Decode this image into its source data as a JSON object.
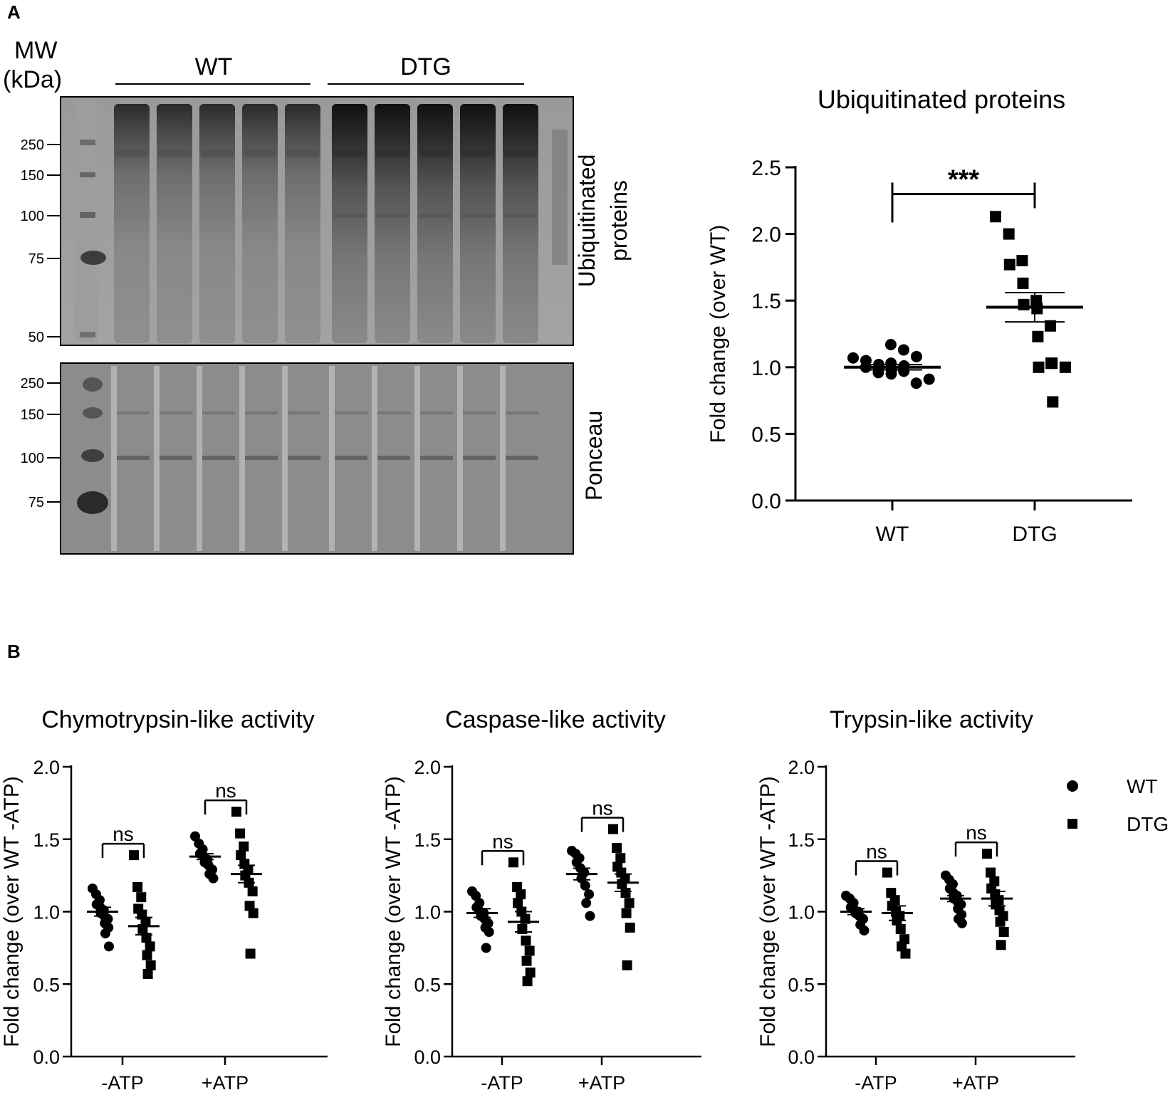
{
  "panel_a": {
    "letter": "A",
    "blot": {
      "mw_header": [
        "MW",
        "(kDa)"
      ],
      "groups": [
        "WT",
        "DTG"
      ],
      "top_blot_label": [
        "Ubiquitinated",
        "proteins"
      ],
      "bottom_blot_label": "Ponceau",
      "top_markers": [
        "250",
        "150",
        "100",
        "75",
        "50"
      ],
      "bottom_markers": [
        "250",
        "150",
        "100",
        "75"
      ]
    }
  },
  "panel_b": {
    "letter": "B",
    "legend": [
      {
        "label": "WT",
        "marker": "circle"
      },
      {
        "label": "DTG",
        "marker": "square"
      }
    ]
  },
  "chart_data": [
    {
      "type": "scatter",
      "title": "Ubiquitinated proteins",
      "ylabel": "Fold change (over WT)",
      "xlabel": "",
      "categories": [
        "WT",
        "DTG"
      ],
      "ylim": [
        0,
        2.5
      ],
      "yticks": [
        "0.0",
        "0.5",
        "1.0",
        "1.5",
        "2.0",
        "2.5"
      ],
      "series": [
        {
          "name": "WT",
          "marker": "circle",
          "category": "WT",
          "values": [
            1.07,
            1.05,
            1.02,
            1.0,
            0.99,
            0.98,
            0.96,
            0.95,
            1.01,
            1.03,
            0.97,
            1.17,
            1.13,
            1.08,
            0.99,
            0.88,
            0.91
          ],
          "mean": 1.0,
          "sem": 0.02
        },
        {
          "name": "DTG",
          "marker": "square",
          "category": "DTG",
          "values": [
            2.13,
            2.0,
            1.8,
            1.77,
            1.63,
            1.5,
            1.47,
            1.44,
            1.31,
            1.23,
            1.03,
            1.0,
            1.03,
            1.0,
            0.74
          ],
          "mean": 1.45,
          "sem": 0.11
        }
      ],
      "significance": [
        {
          "between": [
            "WT",
            "DTG"
          ],
          "label": "***"
        }
      ]
    },
    {
      "type": "scatter",
      "title": "Chymotrypsin-like activity",
      "ylabel": "Fold change (over WT -ATP)",
      "xlabel": "",
      "categories": [
        "-ATP",
        "+ATP"
      ],
      "ylim": [
        0,
        2.0
      ],
      "yticks": [
        "0.0",
        "0.5",
        "1.0",
        "1.5",
        "2.0"
      ],
      "series": [
        {
          "name": "WT",
          "marker": "circle",
          "groups": {
            "-ATP": {
              "values": [
                1.16,
                1.12,
                1.08,
                1.05,
                1.03,
                1.01,
                0.99,
                0.97,
                0.95,
                0.92,
                0.89,
                0.85,
                0.76
              ],
              "mean": 1.0,
              "sem": 0.03
            },
            "+ATP": {
              "values": [
                1.52,
                1.47,
                1.43,
                1.4,
                1.38,
                1.36,
                1.34,
                1.32,
                1.29,
                1.26,
                1.23
              ],
              "mean": 1.38,
              "sem": 0.02
            }
          }
        },
        {
          "name": "DTG",
          "marker": "square",
          "groups": {
            "-ATP": {
              "values": [
                1.39,
                1.17,
                1.1,
                1.02,
                0.98,
                0.93,
                0.88,
                0.82,
                0.76,
                0.7,
                0.63,
                0.57
              ],
              "mean": 0.9,
              "sem": 0.06
            },
            "+ATP": {
              "values": [
                1.69,
                1.54,
                1.45,
                1.39,
                1.33,
                1.29,
                1.25,
                1.2,
                1.14,
                1.04,
                0.99,
                0.71
              ],
              "mean": 1.26,
              "sem": 0.06
            }
          }
        }
      ],
      "significance": [
        {
          "group": "-ATP",
          "label": "ns"
        },
        {
          "group": "+ATP",
          "label": "ns"
        }
      ]
    },
    {
      "type": "scatter",
      "title": "Caspase-like activity",
      "ylabel": "Fold change (over WT -ATP)",
      "xlabel": "",
      "categories": [
        "-ATP",
        "+ATP"
      ],
      "ylim": [
        0,
        2.0
      ],
      "yticks": [
        "0.0",
        "0.5",
        "1.0",
        "1.5",
        "2.0"
      ],
      "series": [
        {
          "name": "WT",
          "marker": "circle",
          "groups": {
            "-ATP": {
              "values": [
                1.14,
                1.11,
                1.06,
                1.03,
                1.0,
                0.99,
                0.97,
                0.95,
                0.92,
                0.89,
                0.86,
                0.75
              ],
              "mean": 0.99,
              "sem": 0.03
            },
            "+ATP": {
              "values": [
                1.42,
                1.4,
                1.37,
                1.34,
                1.3,
                1.27,
                1.23,
                1.18,
                1.12,
                1.06,
                0.97
              ],
              "mean": 1.26,
              "sem": 0.04
            }
          }
        },
        {
          "name": "DTG",
          "marker": "square",
          "groups": {
            "-ATP": {
              "values": [
                1.34,
                1.17,
                1.12,
                1.06,
                1.0,
                0.95,
                0.88,
                0.8,
                0.73,
                0.66,
                0.58,
                0.52
              ],
              "mean": 0.93,
              "sem": 0.07
            },
            "+ATP": {
              "values": [
                1.57,
                1.44,
                1.37,
                1.31,
                1.27,
                1.23,
                1.19,
                1.13,
                1.06,
                0.99,
                0.89,
                0.63
              ],
              "mean": 1.2,
              "sem": 0.06
            }
          }
        }
      ],
      "significance": [
        {
          "group": "-ATP",
          "label": "ns"
        },
        {
          "group": "+ATP",
          "label": "ns"
        }
      ]
    },
    {
      "type": "scatter",
      "title": "Trypsin-like activity",
      "ylabel": "Fold change (over WT -ATP)",
      "xlabel": "",
      "categories": [
        "-ATP",
        "+ATP"
      ],
      "ylim": [
        0,
        2.0
      ],
      "yticks": [
        "0.0",
        "0.5",
        "1.0",
        "1.5",
        "2.0"
      ],
      "series": [
        {
          "name": "WT",
          "marker": "circle",
          "groups": {
            "-ATP": {
              "values": [
                1.11,
                1.09,
                1.06,
                1.03,
                1.01,
                1.0,
                0.99,
                0.97,
                0.95,
                0.91,
                0.87
              ],
              "mean": 1.0,
              "sem": 0.02
            },
            "+ATP": {
              "values": [
                1.25,
                1.22,
                1.19,
                1.16,
                1.13,
                1.11,
                1.09,
                1.07,
                1.05,
                1.02,
                0.98,
                0.95,
                0.92
              ],
              "mean": 1.09,
              "sem": 0.02
            }
          }
        },
        {
          "name": "DTG",
          "marker": "square",
          "groups": {
            "-ATP": {
              "values": [
                1.27,
                1.13,
                1.08,
                1.04,
                1.0,
                0.97,
                0.94,
                0.88,
                0.81,
                0.76,
                0.71
              ],
              "mean": 0.99,
              "sem": 0.05
            },
            "+ATP": {
              "values": [
                1.4,
                1.27,
                1.21,
                1.16,
                1.12,
                1.08,
                1.05,
                1.01,
                0.97,
                0.93,
                0.86,
                0.77
              ],
              "mean": 1.09,
              "sem": 0.05
            }
          }
        }
      ],
      "significance": [
        {
          "group": "-ATP",
          "label": "ns"
        },
        {
          "group": "+ATP",
          "label": "ns"
        }
      ]
    }
  ]
}
